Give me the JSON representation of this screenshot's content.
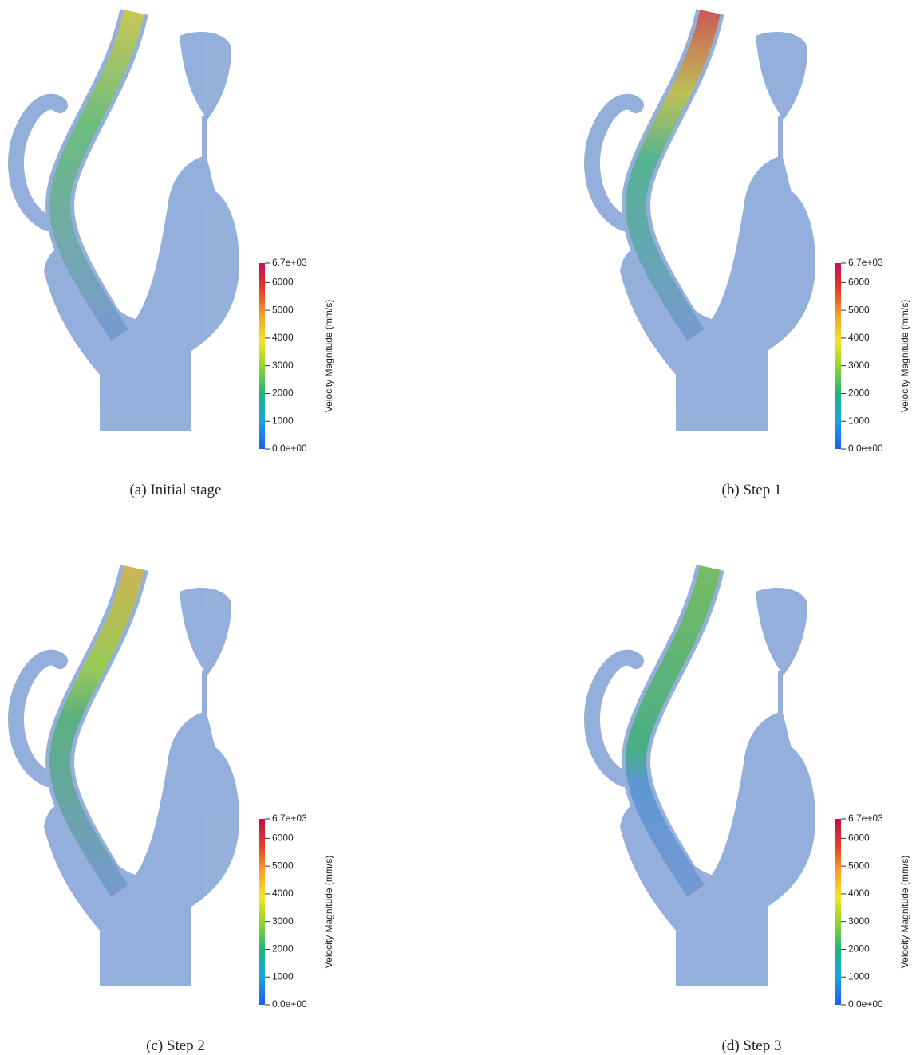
{
  "panels": [
    {
      "caption": "(a) Initial stage",
      "colorbar": {
        "label": "Velocity Magnitude (mm/s)",
        "lim": [
          0,
          6700
        ],
        "ticks": [
          {
            "value": 6700,
            "label": "6.7e+03"
          },
          6000,
          5000,
          4000,
          3000,
          2000,
          1000,
          {
            "value": 0,
            "label": "0.0e+00"
          }
        ]
      }
    },
    {
      "caption": "(b) Step 1",
      "colorbar": {
        "label": "Velocity Magnitude (mm/s)",
        "lim": [
          0,
          6700
        ],
        "ticks": [
          {
            "value": 6700,
            "label": "6.7e+03"
          },
          6000,
          5000,
          4000,
          3000,
          2000,
          1000,
          {
            "value": 0,
            "label": "0.0e+00"
          }
        ]
      }
    },
    {
      "caption": "(c) Step 2",
      "colorbar": {
        "label": "Velocity Magnitude (mm/s)",
        "lim": [
          0,
          6700
        ],
        "ticks": [
          {
            "value": 6700,
            "label": "6.7e+03"
          },
          6000,
          5000,
          4000,
          3000,
          2000,
          1000,
          {
            "value": 0,
            "label": "0.0e+00"
          }
        ]
      }
    },
    {
      "caption": "(d) Step 3",
      "colorbar": {
        "label": "Velocity Magnitude (mm/s)",
        "lim": [
          0,
          6700
        ],
        "ticks": [
          {
            "value": 6700,
            "label": "6.7e+03"
          },
          6000,
          5000,
          4000,
          3000,
          2000,
          1000,
          {
            "value": 0,
            "label": "0.0e+00"
          }
        ]
      }
    }
  ]
}
